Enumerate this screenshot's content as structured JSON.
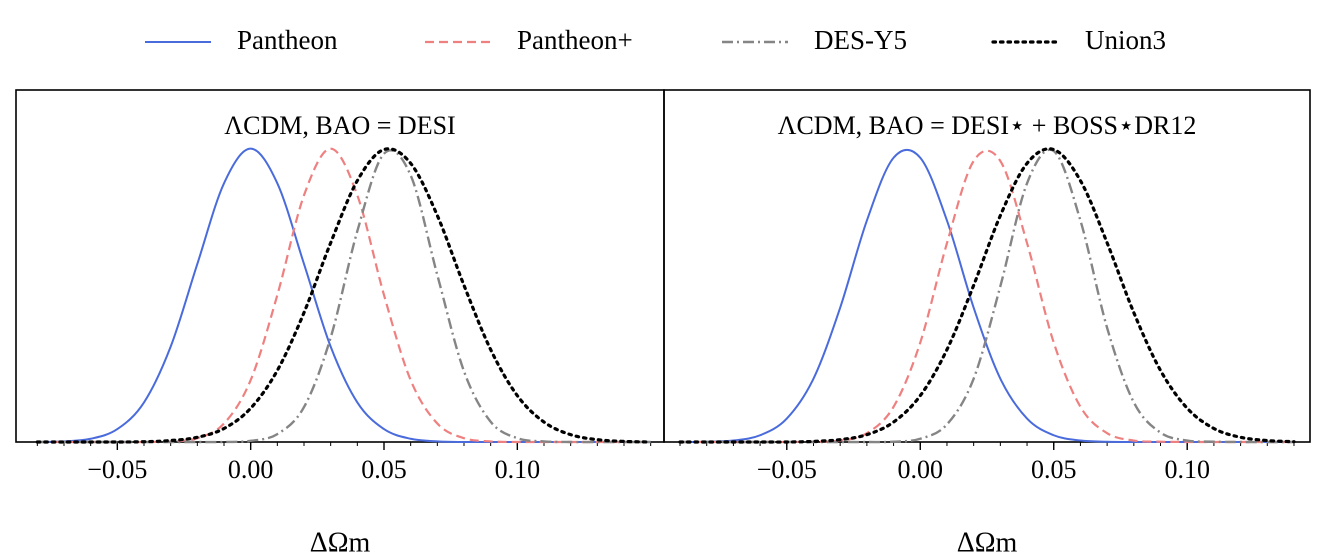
{
  "chart_data": [
    {
      "type": "line",
      "title": "ΛCDM, BAO = DESI",
      "x_label": "ΔΩm",
      "xlim": [
        -0.088,
        0.155
      ],
      "ylim": [
        0,
        1.2
      ],
      "xticks": [
        {
          "value": -0.05,
          "label": "−0.05"
        },
        {
          "value": 0,
          "label": "0.00"
        },
        {
          "value": 0.05,
          "label": "0.05"
        },
        {
          "value": 0.1,
          "label": "0.10"
        }
      ],
      "minor_xticks": [
        -0.08,
        -0.07,
        -0.06,
        -0.05,
        -0.04,
        -0.03,
        -0.02,
        -0.01,
        0,
        0.01,
        0.02,
        0.03,
        0.04,
        0.05,
        0.06,
        0.07,
        0.08,
        0.09,
        0.1,
        0.11,
        0.12,
        0.13,
        0.14,
        0.15
      ],
      "x": [
        -0.08,
        -0.07,
        -0.06,
        -0.05,
        -0.04,
        -0.03,
        -0.02,
        -0.01,
        0,
        0.01,
        0.02,
        0.03,
        0.04,
        0.05,
        0.06,
        0.07,
        0.08,
        0.09,
        0.1,
        0.11,
        0.12,
        0.13,
        0.14,
        0.15
      ],
      "legend": "top",
      "series": [
        {
          "name": "Pantheon",
          "color": "#4a6bdc",
          "dash": "solid",
          "values": [
            0,
            0.002,
            0.011,
            0.044,
            0.135,
            0.325,
            0.607,
            0.882,
            1,
            0.882,
            0.607,
            0.325,
            0.135,
            0.044,
            0.011,
            0.002,
            0,
            0,
            0,
            0,
            0,
            0,
            0,
            0
          ]
        },
        {
          "name": "Pantheon+",
          "color": "#ef8080",
          "dash": "dashed",
          "values": [
            0,
            0,
            0,
            0,
            0,
            0.002,
            0.013,
            0.063,
            0.211,
            0.501,
            0.841,
            1,
            0.841,
            0.501,
            0.211,
            0.063,
            0.013,
            0.002,
            0,
            0,
            0,
            0,
            0,
            0
          ]
        },
        {
          "name": "DES-Y5",
          "color": "#858585",
          "dash": "dashdot",
          "values": [
            0,
            0,
            0,
            0,
            0,
            0,
            0,
            0,
            0.004,
            0.027,
            0.119,
            0.356,
            0.719,
            0.983,
            0.909,
            0.569,
            0.241,
            0.069,
            0.013,
            0.002,
            0,
            0,
            0,
            0
          ]
        },
        {
          "name": "Union3",
          "color": "#000000",
          "dash": "dotted",
          "values": [
            0,
            0,
            0,
            0,
            0.001,
            0.005,
            0.016,
            0.046,
            0.115,
            0.244,
            0.441,
            0.679,
            0.891,
            0.997,
            0.95,
            0.772,
            0.534,
            0.315,
            0.158,
            0.068,
            0.025,
            0.008,
            0.002,
            0
          ]
        }
      ]
    },
    {
      "type": "line",
      "title": "ΛCDM, BAO = DESI⋆ + BOSS⋆DR12",
      "x_label": "ΔΩm",
      "xlim": [
        -0.096,
        0.146
      ],
      "ylim": [
        0,
        1.2
      ],
      "xticks": [
        {
          "value": -0.05,
          "label": "−0.05"
        },
        {
          "value": 0,
          "label": "0.00"
        },
        {
          "value": 0.05,
          "label": "0.05"
        },
        {
          "value": 0.1,
          "label": "0.10"
        }
      ],
      "minor_xticks": [
        -0.09,
        -0.08,
        -0.07,
        -0.06,
        -0.05,
        -0.04,
        -0.03,
        -0.02,
        -0.01,
        0,
        0.01,
        0.02,
        0.03,
        0.04,
        0.05,
        0.06,
        0.07,
        0.08,
        0.09,
        0.1,
        0.11,
        0.12,
        0.13,
        0.14
      ],
      "x": [
        -0.09,
        -0.08,
        -0.07,
        -0.06,
        -0.05,
        -0.04,
        -0.03,
        -0.02,
        -0.01,
        0,
        0.01,
        0.02,
        0.03,
        0.04,
        0.05,
        0.06,
        0.07,
        0.08,
        0.09,
        0.1,
        0.11,
        0.12,
        0.13,
        0.14
      ],
      "series": [
        {
          "values": [
            0,
            0.001,
            0.005,
            0.023,
            0.08,
            0.216,
            0.458,
            0.755,
            0.969,
            0.969,
            0.755,
            0.458,
            0.216,
            0.08,
            0.023,
            0.005,
            0.001,
            0,
            0,
            0,
            0,
            0,
            0,
            0
          ]
        },
        {
          "values": [
            0,
            0,
            0,
            0,
            0,
            0.001,
            0.005,
            0.03,
            0.12,
            0.339,
            0.678,
            0.958,
            0.958,
            0.678,
            0.339,
            0.12,
            0.03,
            0.005,
            0.001,
            0,
            0,
            0,
            0,
            0
          ]
        },
        {
          "values": [
            0,
            0,
            0,
            0,
            0,
            0,
            0,
            0,
            0.001,
            0.011,
            0.06,
            0.216,
            0.531,
            0.882,
            0.992,
            0.755,
            0.389,
            0.135,
            0.032,
            0.005,
            0.001,
            0,
            0,
            0
          ]
        },
        {
          "values": [
            0,
            0,
            0,
            0,
            0,
            0.002,
            0.008,
            0.025,
            0.068,
            0.158,
            0.315,
            0.534,
            0.772,
            0.95,
            0.997,
            0.891,
            0.679,
            0.441,
            0.244,
            0.115,
            0.046,
            0.016,
            0.005,
            0.001
          ]
        }
      ]
    }
  ]
}
